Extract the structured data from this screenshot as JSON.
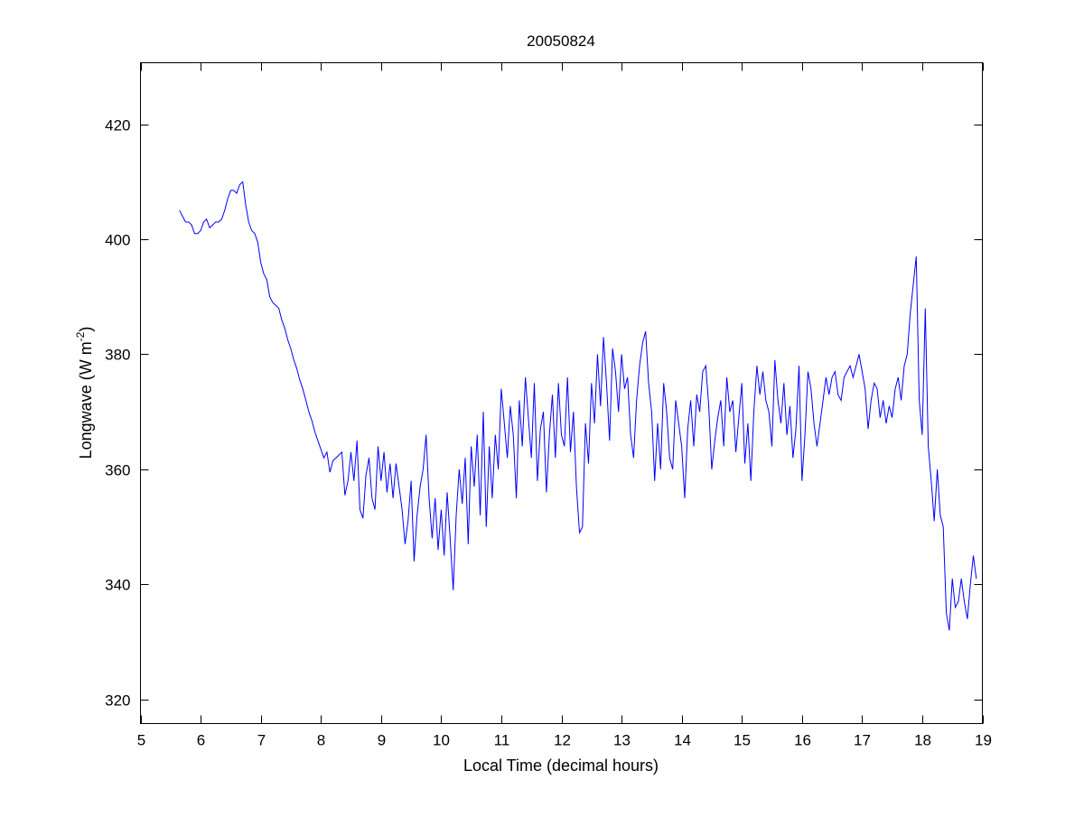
{
  "chart_data": {
    "type": "line",
    "title": "20050824",
    "xlabel": "Local Time (decimal hours)",
    "ylabel_main": "Longwave (W m",
    "ylabel_sup": "-2",
    "ylabel_end": ")",
    "xlim": [
      5,
      19
    ],
    "ylim": [
      315.8,
      430.7
    ],
    "xticks": [
      5,
      6,
      7,
      8,
      9,
      10,
      11,
      12,
      13,
      14,
      15,
      16,
      17,
      18,
      19
    ],
    "yticks": [
      320,
      340,
      360,
      380,
      400,
      420
    ],
    "grid": false,
    "line_color": "#0000ff",
    "series": [
      {
        "name": "Longwave",
        "x_start": 5.65,
        "x_step": 0.05,
        "y": [
          405,
          404,
          403,
          403,
          402.5,
          401,
          401,
          401.5,
          403,
          403.5,
          402,
          402.5,
          403,
          403,
          403.5,
          405,
          407,
          408.5,
          408.5,
          408,
          409.5,
          410,
          406,
          403,
          401.5,
          401,
          399.5,
          396,
          394,
          393,
          390,
          389,
          388.5,
          388,
          386,
          384.5,
          382.5,
          381,
          379,
          377.5,
          375.5,
          374,
          372,
          370,
          368.5,
          366.5,
          365,
          363.5,
          362,
          363,
          359.5,
          361.5,
          362,
          362.5,
          363,
          355.5,
          358,
          363,
          358,
          365,
          353,
          351.5,
          359,
          362,
          355,
          353,
          364,
          358,
          363,
          356,
          361,
          355,
          361,
          357,
          353,
          347,
          351,
          358,
          344,
          352,
          357,
          360,
          366,
          355,
          348,
          355,
          346,
          353,
          345,
          356,
          348,
          339,
          352,
          360,
          354,
          362,
          347,
          364,
          357,
          366,
          352,
          370,
          350,
          364,
          355,
          366,
          360,
          374,
          368,
          362,
          371,
          366,
          355,
          372,
          364,
          376,
          369,
          362,
          375,
          358,
          367,
          370,
          356,
          366,
          373,
          362,
          375,
          366,
          364,
          376,
          363,
          370,
          357,
          349,
          350,
          368,
          361,
          375,
          368,
          380,
          371,
          383,
          375,
          365,
          381,
          377,
          370,
          380,
          374,
          376,
          366,
          362,
          372,
          378,
          382,
          384,
          375,
          370,
          358,
          368,
          360,
          375,
          370,
          362,
          360,
          372,
          368,
          364,
          355,
          367,
          372,
          364,
          373,
          370,
          377,
          378,
          371,
          360,
          365,
          369,
          372,
          364,
          376,
          370,
          372,
          363,
          369,
          375,
          361,
          368,
          358,
          370,
          378,
          373,
          377,
          372,
          370,
          364,
          379,
          372,
          368,
          375,
          366,
          371,
          362,
          367,
          378,
          358,
          366,
          377,
          374,
          368,
          364,
          368,
          372,
          376,
          373,
          376,
          377,
          373,
          372,
          376,
          377,
          378,
          376,
          378,
          380,
          377,
          374,
          367,
          372,
          375,
          374,
          369,
          372,
          368,
          371,
          369,
          374,
          376,
          372,
          378,
          380,
          387,
          392,
          397,
          372,
          366,
          388,
          364,
          358,
          351,
          360,
          352,
          350,
          335,
          332,
          341,
          336,
          337,
          341,
          337,
          334,
          340,
          345,
          341
        ]
      }
    ]
  }
}
